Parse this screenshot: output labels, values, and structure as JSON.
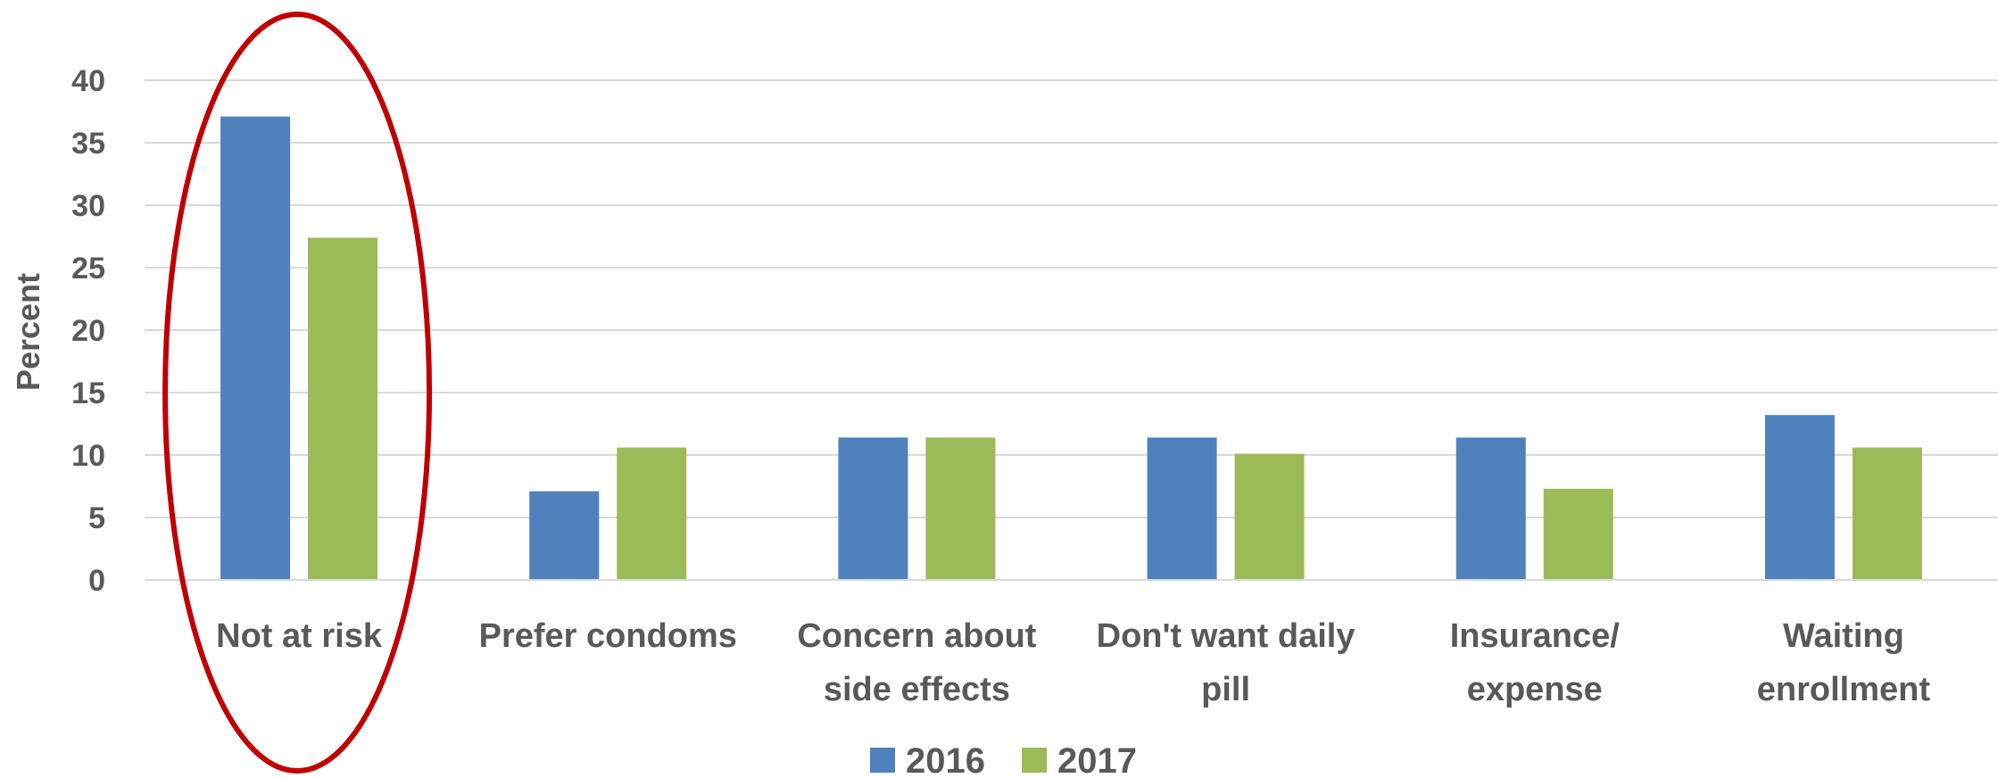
{
  "chart_data": {
    "type": "bar",
    "ylabel": "Percent",
    "ylim": [
      0,
      40
    ],
    "yticks": [
      0,
      5,
      10,
      15,
      20,
      25,
      30,
      35,
      40
    ],
    "grid": true,
    "legend_position": "bottom",
    "categories": [
      [
        "Not at risk"
      ],
      [
        "Prefer condoms"
      ],
      [
        "Concern about",
        "side effects"
      ],
      [
        "Don't want daily",
        "pill"
      ],
      [
        "Insurance/",
        "expense"
      ],
      [
        "Waiting",
        "enrollment"
      ]
    ],
    "series": [
      {
        "name": "2016",
        "color": "#4f81bd",
        "values": [
          37.1,
          7.1,
          11.4,
          11.4,
          11.4,
          13.2
        ]
      },
      {
        "name": "2017",
        "color": "#9bbb59",
        "values": [
          27.4,
          10.6,
          11.4,
          10.1,
          7.3,
          10.6
        ]
      }
    ],
    "highlight": {
      "category_index": 0,
      "shape": "ellipse",
      "color": "#c00000"
    }
  }
}
